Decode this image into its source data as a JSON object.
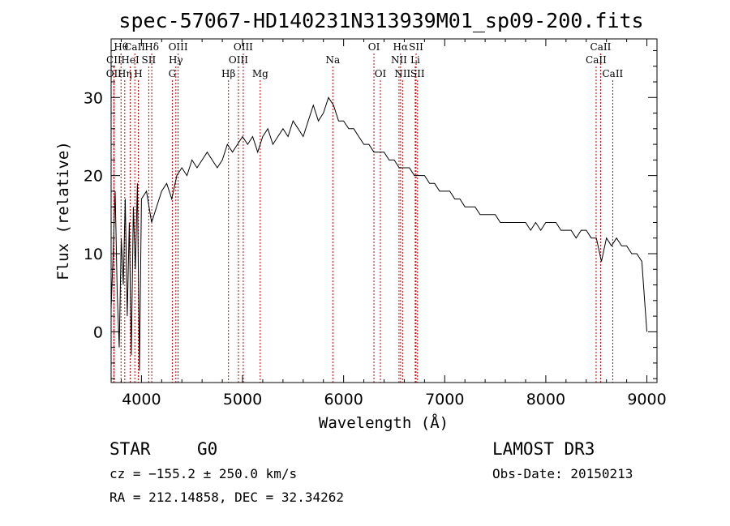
{
  "chart_data": {
    "type": "line",
    "title": "spec-57067-HD140231N313939M01_sp09-200.fits",
    "xlabel": "Wavelength (Å)",
    "ylabel": "Flux (relative)",
    "xlim": [
      3700,
      9100
    ],
    "ylim": [
      -6.5,
      37.5
    ],
    "x_ticks": [
      4000,
      5000,
      6000,
      7000,
      8000,
      9000
    ],
    "y_ticks": [
      0,
      10,
      20,
      30
    ],
    "grid": false,
    "series": [
      {
        "x": [
          3700,
          3720,
          3740,
          3760,
          3780,
          3800,
          3820,
          3840,
          3860,
          3880,
          3900,
          3920,
          3940,
          3960,
          3980,
          4000,
          4050,
          4100,
          4150,
          4200,
          4250,
          4300,
          4350,
          4400,
          4450,
          4500,
          4550,
          4600,
          4650,
          4700,
          4750,
          4800,
          4850,
          4900,
          4950,
          5000,
          5050,
          5100,
          5150,
          5200,
          5250,
          5300,
          5350,
          5400,
          5450,
          5500,
          5550,
          5600,
          5650,
          5700,
          5750,
          5800,
          5850,
          5900,
          5950,
          6000,
          6050,
          6100,
          6150,
          6200,
          6250,
          6300,
          6350,
          6400,
          6450,
          6500,
          6550,
          6600,
          6650,
          6700,
          6750,
          6800,
          6850,
          6900,
          6950,
          7000,
          7050,
          7100,
          7150,
          7200,
          7250,
          7300,
          7350,
          7400,
          7450,
          7500,
          7550,
          7600,
          7650,
          7700,
          7750,
          7800,
          7850,
          7900,
          7950,
          8000,
          8050,
          8100,
          8150,
          8200,
          8250,
          8300,
          8350,
          8400,
          8450,
          8500,
          8550,
          8600,
          8650,
          8700,
          8750,
          8800,
          8850,
          8900,
          8950,
          9000
        ],
        "y": [
          3,
          10,
          18,
          5,
          -2,
          12,
          6,
          17,
          2,
          14,
          -3,
          16,
          8,
          19,
          -5,
          17,
          18,
          14,
          16,
          18,
          19,
          17,
          20,
          21,
          20,
          22,
          21,
          22,
          23,
          22,
          21,
          22,
          24,
          23,
          24,
          25,
          24,
          25,
          23,
          25,
          26,
          24,
          25,
          26,
          25,
          27,
          26,
          25,
          27,
          29,
          27,
          28,
          30,
          29,
          27,
          27,
          26,
          26,
          25,
          24,
          24,
          23,
          23,
          23,
          22,
          22,
          21,
          21,
          21,
          20,
          20,
          20,
          19,
          19,
          18,
          18,
          18,
          17,
          17,
          16,
          16,
          16,
          15,
          15,
          15,
          15,
          14,
          14,
          14,
          14,
          14,
          14,
          13,
          14,
          13,
          14,
          14,
          14,
          13,
          13,
          13,
          12,
          13,
          13,
          12,
          12,
          9,
          12,
          11,
          12,
          11,
          11,
          10,
          10,
          9,
          0
        ]
      }
    ],
    "spectral_lines": [
      {
        "label": "Hθ",
        "wavelength": 3798,
        "row": 1
      },
      {
        "label": "CaII",
        "wavelength": 3934,
        "row": 1
      },
      {
        "label": "Hδ",
        "wavelength": 4102,
        "row": 1
      },
      {
        "label": "OIII",
        "wavelength": 4363,
        "row": 1
      },
      {
        "label": "OIII",
        "wavelength": 5007,
        "row": 1
      },
      {
        "label": "OI",
        "wavelength": 6300,
        "row": 1
      },
      {
        "label": "Hα",
        "wavelength": 6563,
        "row": 1
      },
      {
        "label": "SII",
        "wavelength": 6717,
        "row": 1
      },
      {
        "label": "CaII",
        "wavelength": 8542,
        "row": 1
      },
      {
        "label": "CII",
        "wavelength": 3727,
        "row": 2
      },
      {
        "label": "HeI",
        "wavelength": 3889,
        "row": 2
      },
      {
        "label": "SII",
        "wavelength": 4072,
        "row": 2
      },
      {
        "label": "Hγ",
        "wavelength": 4340,
        "row": 2
      },
      {
        "label": "OIII",
        "wavelength": 4959,
        "row": 2
      },
      {
        "label": "Na",
        "wavelength": 5893,
        "row": 2
      },
      {
        "label": "NII",
        "wavelength": 6548,
        "row": 2
      },
      {
        "label": "Li",
        "wavelength": 6708,
        "row": 2
      },
      {
        "label": "CaII",
        "wavelength": 8498,
        "row": 2
      },
      {
        "label": "OII",
        "wavelength": 3727,
        "row": 3
      },
      {
        "label": "Hη",
        "wavelength": 3835,
        "row": 3
      },
      {
        "label": "H",
        "wavelength": 3969,
        "row": 3
      },
      {
        "label": "G",
        "wavelength": 4305,
        "row": 3
      },
      {
        "label": "Hβ",
        "wavelength": 4861,
        "row": 3
      },
      {
        "label": "Mg",
        "wavelength": 5175,
        "row": 3
      },
      {
        "label": "OI",
        "wavelength": 6364,
        "row": 3
      },
      {
        "label": "NII",
        "wavelength": 6583,
        "row": 3
      },
      {
        "label": "SII",
        "wavelength": 6731,
        "row": 3
      },
      {
        "label": "CaII",
        "wavelength": 8662,
        "row": 3
      }
    ],
    "line_marker_color": "#cc0000"
  },
  "info": {
    "object_class": "STAR",
    "subclass": "G0",
    "survey": "LAMOST DR3",
    "velocity": "cz = −155.2 ± 250.0 km/s",
    "obs_date": "Obs-Date: 20150213",
    "coords": "RA = 212.14858, DEC =  32.34262"
  }
}
